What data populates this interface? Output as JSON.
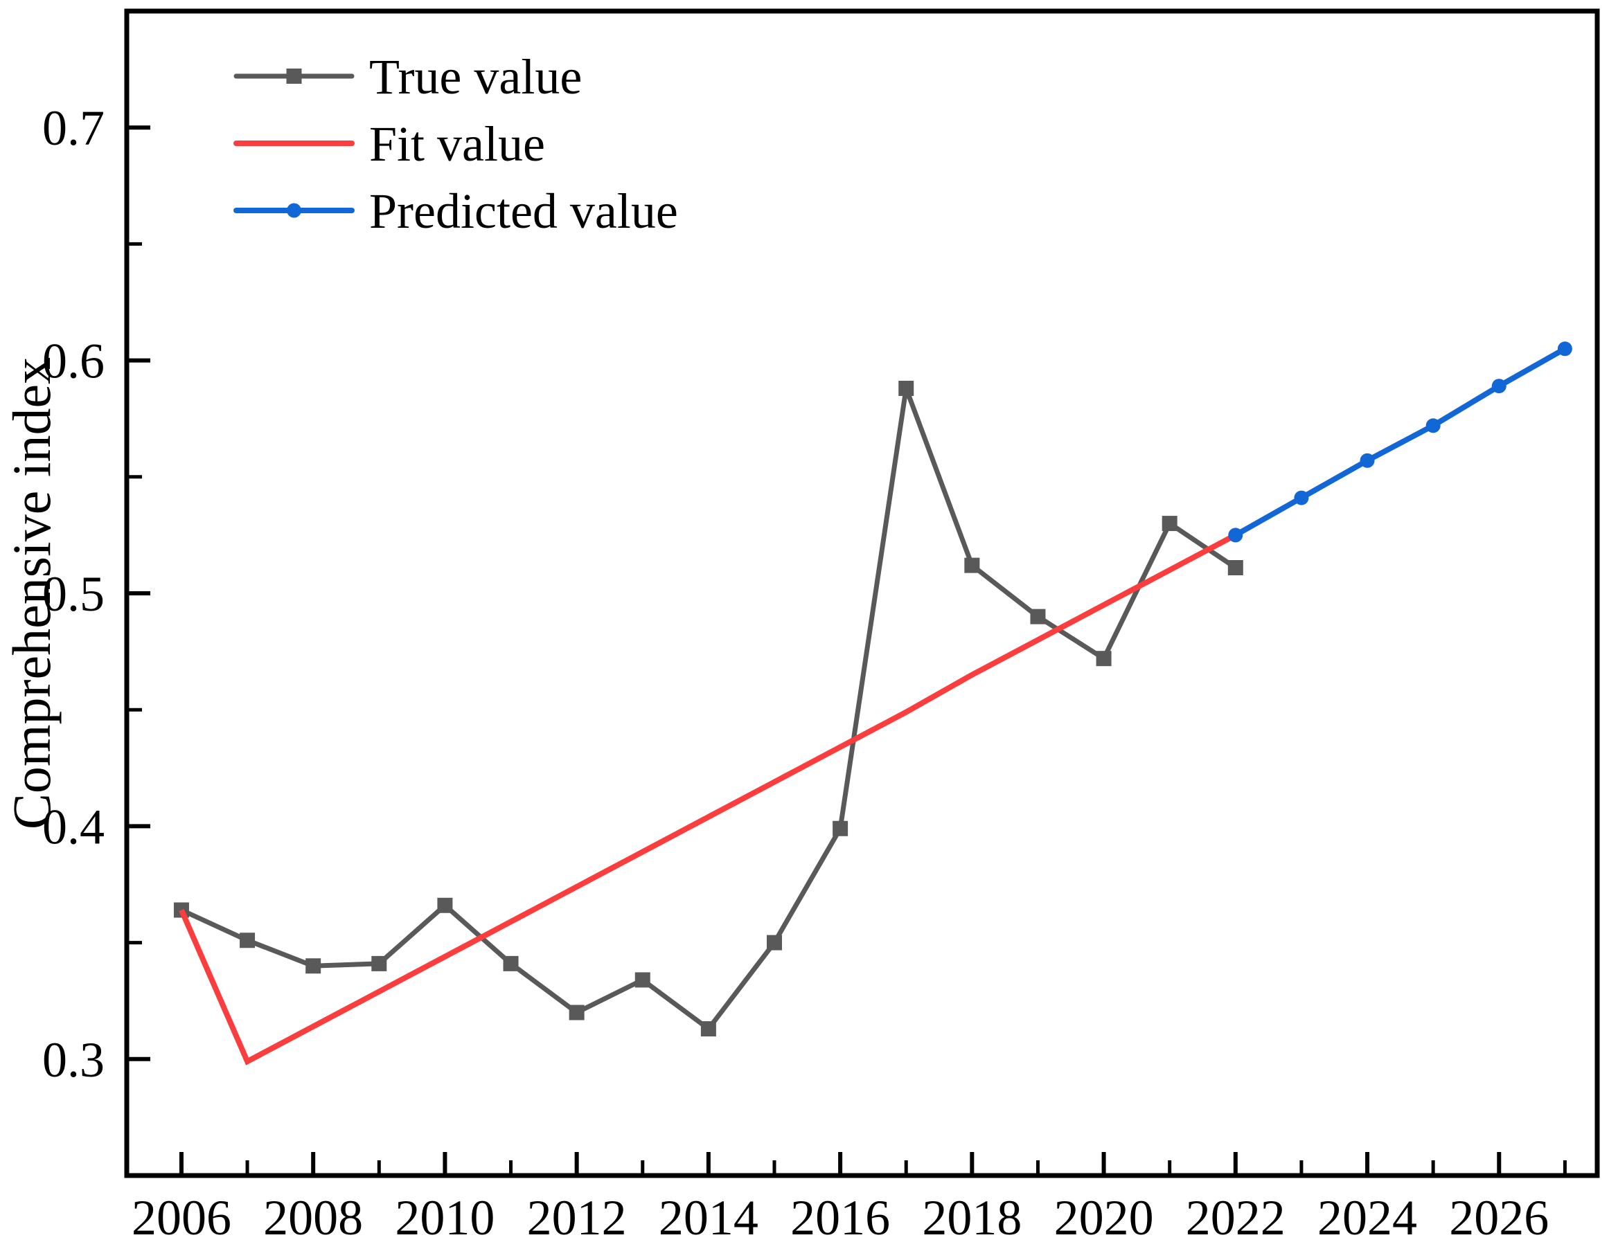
{
  "chart_data": {
    "type": "line",
    "title": "",
    "xlabel": "",
    "ylabel": "Comprehensive index",
    "xlim": [
      2005.17,
      2027.49
    ],
    "ylim": [
      0.25,
      0.75
    ],
    "grid": false,
    "legend_position": "top-left",
    "x_ticks_major": [
      2006,
      2008,
      2010,
      2012,
      2014,
      2016,
      2018,
      2020,
      2022,
      2024,
      2026
    ],
    "x_tick_labels": [
      "2006",
      "2008",
      "2010",
      "2012",
      "2014",
      "2016",
      "2018",
      "2020",
      "2022",
      "2024",
      "2026"
    ],
    "x_ticks_minor": [
      2007,
      2009,
      2011,
      2013,
      2015,
      2017,
      2019,
      2021,
      2023,
      2025,
      2027
    ],
    "y_ticks_major": [
      0.3,
      0.4,
      0.5,
      0.6,
      0.7
    ],
    "y_tick_labels": [
      "0.3",
      "0.4",
      "0.5",
      "0.6",
      "0.7"
    ],
    "y_ticks_minor": [
      0.35,
      0.45,
      0.55,
      0.65
    ],
    "series": [
      {
        "name": "True value",
        "color": "#595959",
        "marker": "square",
        "line_width": 7,
        "x": [
          2006,
          2007,
          2008,
          2009,
          2010,
          2011,
          2012,
          2013,
          2014,
          2015,
          2016,
          2017,
          2018,
          2019,
          2020,
          2021,
          2022
        ],
        "values": [
          0.364,
          0.351,
          0.34,
          0.341,
          0.366,
          0.341,
          0.32,
          0.334,
          0.313,
          0.35,
          0.399,
          0.588,
          0.512,
          0.49,
          0.472,
          0.53,
          0.511
        ]
      },
      {
        "name": "Fit value",
        "color": "#fb3d3d",
        "marker": "none",
        "line_width": 8,
        "x": [
          2006,
          2007,
          2008,
          2009,
          2010,
          2011,
          2012,
          2013,
          2014,
          2015,
          2016,
          2017,
          2018,
          2019,
          2020,
          2021,
          2022
        ],
        "values": [
          0.364,
          0.299,
          0.314,
          0.329,
          0.344,
          0.359,
          0.374,
          0.389,
          0.404,
          0.419,
          0.434,
          0.449,
          0.465,
          0.48,
          0.495,
          0.51,
          0.525
        ]
      },
      {
        "name": "Predicted value",
        "color": "#1267d6",
        "marker": "circle",
        "line_width": 8,
        "x": [
          2022,
          2023,
          2024,
          2025,
          2026,
          2027
        ],
        "values": [
          0.525,
          0.541,
          0.557,
          0.572,
          0.589,
          0.605
        ]
      }
    ],
    "legend_items": [
      {
        "label": "True value",
        "color": "#595959",
        "marker": "square"
      },
      {
        "label": "Fit value",
        "color": "#fb3d3d",
        "marker": "none"
      },
      {
        "label": "Predicted value",
        "color": "#1267d6",
        "marker": "circle"
      }
    ]
  }
}
